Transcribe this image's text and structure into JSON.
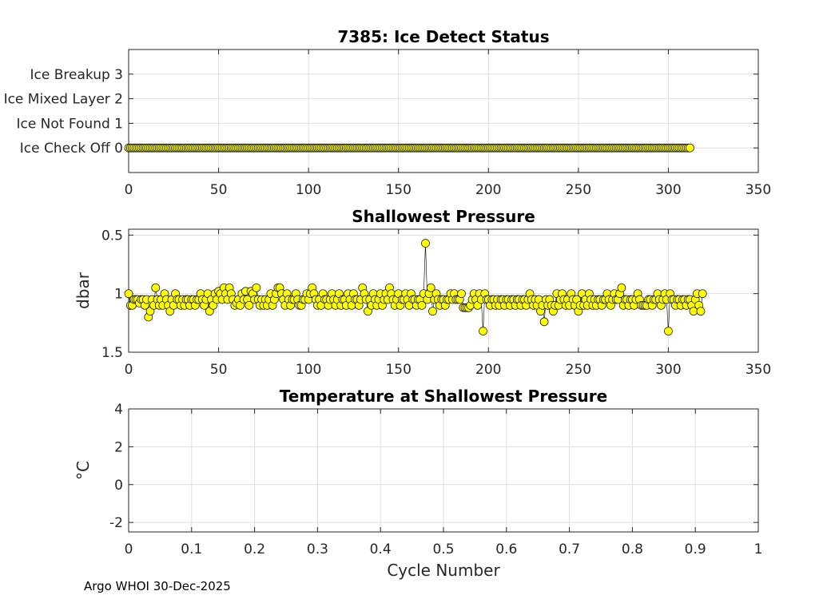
{
  "footer": "Argo WHOI 30-Dec-2025",
  "colors": {
    "marker_fill": "#ffff00",
    "marker_edge": "#000000",
    "grid": "#dedede",
    "axis": "#262626"
  },
  "chart_data": [
    {
      "type": "scatter",
      "title": "7385: Ice Detect Status",
      "xlabel": "",
      "ylabel": "",
      "xlim": [
        0,
        350
      ],
      "ylim": [
        -1,
        4
      ],
      "xticks": [
        0,
        50,
        100,
        150,
        200,
        250,
        300,
        350
      ],
      "xticklabels": [
        "0",
        "50",
        "100",
        "150",
        "200",
        "250",
        "300",
        "350"
      ],
      "yticks": [
        0,
        1,
        2,
        3
      ],
      "yticklabels": [
        "Ice Check Off 0",
        "Ice Not Found 1",
        "Ice Mixed Layer 2",
        "Ice Breakup 3"
      ],
      "y_reversed": false,
      "grid": true,
      "series": [
        {
          "name": "Ice detect status",
          "x_range": [
            0,
            312
          ],
          "x_step": 1,
          "y_constant": 0
        }
      ]
    },
    {
      "type": "scatter",
      "title": "Shallowest Pressure",
      "xlabel": "",
      "ylabel": "dbar",
      "xlim": [
        0,
        350
      ],
      "ylim": [
        0.45,
        1.5
      ],
      "xticks": [
        0,
        50,
        100,
        150,
        200,
        250,
        300,
        350
      ],
      "xticklabels": [
        "0",
        "50",
        "100",
        "150",
        "200",
        "250",
        "300",
        "350"
      ],
      "yticks": [
        0.5,
        1,
        1.5
      ],
      "yticklabels": [
        "0.5",
        "1",
        "1.5"
      ],
      "y_reversed": true,
      "grid": true,
      "series": [
        {
          "name": "Shallowest pressure",
          "x_start": 0,
          "values": [
            1.0,
            1.1,
            1.1,
            1.05,
            1.05,
            1.05,
            1.08,
            1.05,
            1.05,
            1.1,
            1.05,
            1.2,
            1.15,
            1.05,
            1.1,
            0.95,
            1.05,
            1.1,
            1.05,
            1.1,
            1.0,
            1.05,
            1.1,
            1.15,
            1.05,
            1.1,
            1.0,
            1.05,
            1.05,
            1.1,
            1.05,
            1.1,
            1.05,
            1.05,
            1.1,
            1.05,
            1.05,
            1.1,
            1.05,
            1.05,
            1.0,
            1.05,
            1.1,
            1.05,
            1.0,
            1.15,
            1.05,
            1.1,
            1.0,
            1.05,
            0.98,
            1.0,
            1.05,
            0.95,
            1.0,
            1.05,
            0.95,
            1.0,
            1.05,
            1.1,
            1.08,
            1.05,
            1.1,
            1.0,
            1.05,
            0.98,
            1.05,
            1.1,
            0.98,
            1.0,
            1.05,
            0.95,
            1.05,
            1.1,
            1.05,
            1.1,
            1.05,
            1.1,
            1.05,
            1.0,
            1.1,
            1.05,
            1.0,
            0.95,
            0.95,
            1.0,
            1.05,
            1.1,
            1.0,
            1.05,
            1.1,
            1.05,
            1.05,
            1.0,
            1.05,
            1.1,
            1.1,
            1.05,
            1.05,
            1.0,
            1.05,
            1.0,
            0.95,
            1.0,
            1.05,
            1.1,
            1.05,
            1.1,
            1.0,
            1.05,
            1.05,
            1.1,
            1.05,
            1.0,
            1.05,
            1.1,
            1.05,
            1.0,
            1.1,
            1.05,
            1.05,
            1.1,
            1.0,
            1.05,
            1.1,
            1.0,
            1.05,
            1.05,
            1.1,
            1.05,
            0.95,
            1.0,
            1.05,
            1.15,
            1.05,
            1.1,
            1.0,
            1.05,
            1.1,
            1.05,
            1.0,
            1.1,
            1.05,
            1.0,
            1.05,
            0.95,
            1.0,
            1.05,
            1.1,
            1.05,
            1.0,
            1.1,
            1.05,
            1.05,
            1.0,
            1.05,
            1.1,
            1.0,
            1.05,
            1.05,
            1.1,
            1.05,
            1.05,
            1.1,
            1.0,
            0.57,
            1.05,
            1.0,
            0.95,
            1.15,
            1.05,
            1.0,
            1.05,
            1.1,
            1.05,
            1.05,
            1.1,
            1.05,
            1.05,
            1.0,
            1.05,
            1.0,
            1.05,
            1.05,
            1.05,
            1.0,
            1.12,
            1.12,
            1.12,
            1.12,
            1.1,
            1.05,
            1.0,
            1.05,
            1.1,
            1.0,
            1.05,
            1.32,
            1.0,
            1.05,
            1.05,
            1.1,
            1.05,
            1.05,
            1.1,
            1.05,
            1.1,
            1.05,
            1.05,
            1.1,
            1.05,
            1.05,
            1.1,
            1.05,
            1.05,
            1.1,
            1.05,
            1.05,
            1.1,
            1.05,
            1.05,
            1.1,
            1.05,
            1.0,
            1.05,
            1.1,
            1.05,
            1.1,
            1.05,
            1.15,
            1.1,
            1.24,
            1.05,
            1.1,
            1.05,
            1.1,
            1.15,
            1.1,
            1.0,
            1.1,
            1.05,
            1.0,
            1.05,
            1.1,
            1.05,
            1.1,
            1.0,
            1.05,
            1.1,
            1.05,
            1.15,
            1.1,
            1.0,
            1.1,
            1.05,
            1.1,
            1.0,
            1.05,
            1.1,
            1.05,
            1.1,
            1.05,
            1.05,
            1.1,
            1.05,
            1.05,
            1.0,
            1.05,
            1.1,
            1.05,
            1.0,
            1.05,
            1.05,
            1.0,
            0.95,
            1.1,
            1.05,
            1.05,
            1.1,
            1.05,
            1.05,
            1.1,
            1.05,
            1.0,
            1.05,
            1.1,
            1.1,
            1.1,
            1.1,
            1.05,
            1.05,
            1.1,
            1.05,
            1.05,
            1.0,
            1.05,
            1.1,
            1.05,
            1.0,
            1.05,
            1.32,
            1.0,
            1.05,
            1.05,
            1.1,
            1.05,
            1.05,
            1.1,
            1.05,
            1.05,
            1.1,
            1.05,
            1.05,
            1.1,
            1.15,
            1.05,
            1.0,
            1.1,
            1.15,
            1.0
          ]
        }
      ]
    },
    {
      "type": "scatter",
      "title": "Temperature at Shallowest Pressure",
      "xlabel": "Cycle Number",
      "ylabel": "°C",
      "xlim": [
        0,
        1
      ],
      "ylim": [
        -2.5,
        4
      ],
      "xticks": [
        0,
        0.1,
        0.2,
        0.3,
        0.4,
        0.5,
        0.6,
        0.7,
        0.8,
        0.9,
        1
      ],
      "xticklabels": [
        "0",
        "0.1",
        "0.2",
        "0.3",
        "0.4",
        "0.5",
        "0.6",
        "0.7",
        "0.8",
        "0.9",
        "1"
      ],
      "yticks": [
        -2,
        0,
        2,
        4
      ],
      "yticklabels": [
        "-2",
        "0",
        "2",
        "4"
      ],
      "y_reversed": false,
      "grid": true,
      "series": []
    }
  ]
}
